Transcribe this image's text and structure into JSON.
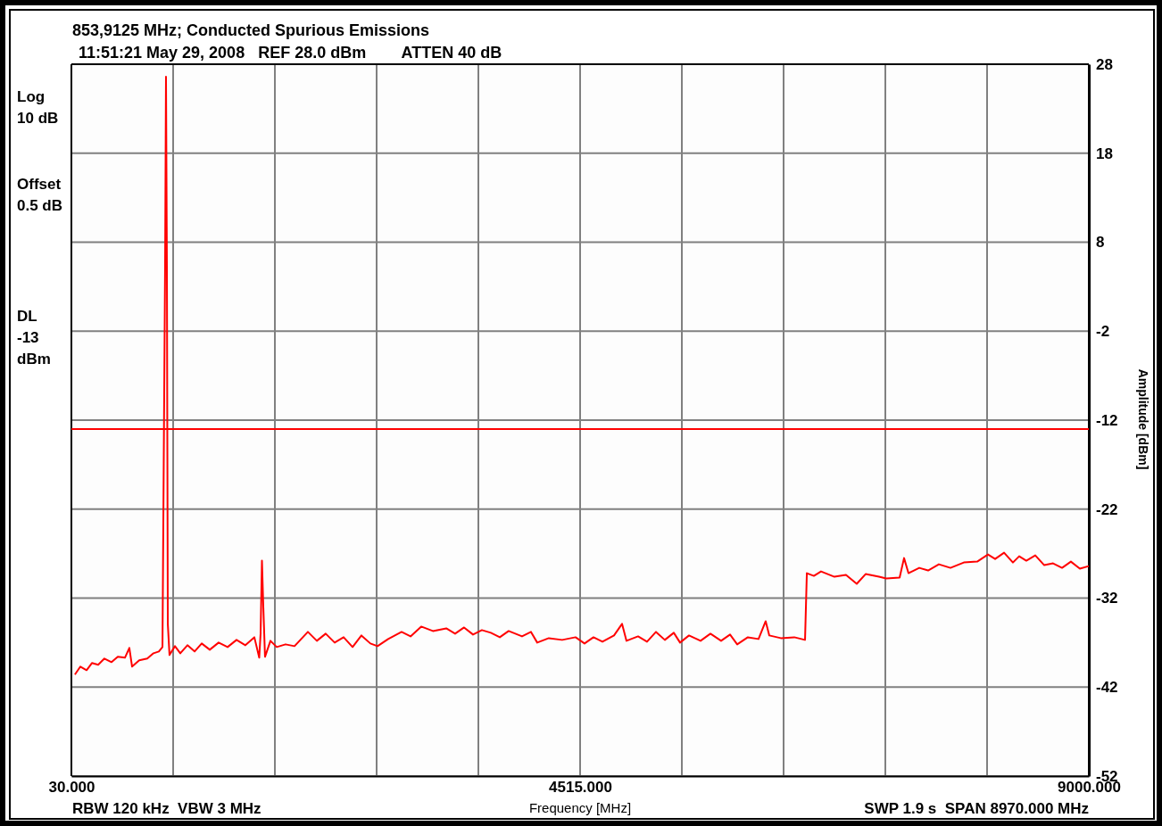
{
  "chart_data": {
    "type": "line",
    "title": "853,9125 MHz; Conducted Spurious Emissions",
    "subtitle": "11:51:21 May 29, 2008   REF 28.0 dBm        ATTEN 40 dB",
    "xlabel": "Frequency [MHz]",
    "ylabel": "Amplitude [dBm]",
    "annotations": [
      "Log\n10 dB",
      "Offset\n0.5 dB",
      "DL\n-13\ndBm",
      "RBW 120 kHz  VBW 3 MHz",
      "SWP 1.9 s  SPAN 8970.000 MHz"
    ],
    "xlim": [
      30,
      9000
    ],
    "xticks": [
      {
        "value": 30,
        "label": "30.000"
      },
      {
        "value": 927,
        "label": null
      },
      {
        "value": 1824,
        "label": null
      },
      {
        "value": 2721,
        "label": null
      },
      {
        "value": 3618,
        "label": null
      },
      {
        "value": 4515,
        "label": "4515.000"
      },
      {
        "value": 5412,
        "label": null
      },
      {
        "value": 6309,
        "label": null
      },
      {
        "value": 7206,
        "label": null
      },
      {
        "value": 8103,
        "label": null
      },
      {
        "value": 9000,
        "label": "9000.000"
      }
    ],
    "ylim": [
      -52,
      28
    ],
    "yticks": [
      28,
      18,
      8,
      -2,
      -12,
      -22,
      -32,
      -42,
      -52
    ],
    "grid": true,
    "line_style": "solid",
    "marker": "none",
    "ref_lines": [
      {
        "axis": "y",
        "value": -13,
        "color": "#ff0000"
      }
    ],
    "series": [
      {
        "color": "#ff0000",
        "x": [
          61,
          109,
          164,
          211,
          266,
          321,
          384,
          439,
          502,
          541,
          565,
          628,
          699,
          754,
          801,
          833,
          844,
          856,
          864,
          872,
          880,
          895,
          943,
          990,
          1053,
          1116,
          1179,
          1250,
          1328,
          1407,
          1486,
          1564,
          1643,
          1686,
          1698,
          1710,
          1722,
          1737,
          1785,
          1840,
          1918,
          1997,
          2115,
          2194,
          2272,
          2351,
          2430,
          2509,
          2587,
          2666,
          2729,
          2823,
          2941,
          3020,
          3114,
          3217,
          3335,
          3413,
          3492,
          3571,
          3649,
          3728,
          3807,
          3885,
          4003,
          4082,
          4137,
          4239,
          4357,
          4475,
          4554,
          4633,
          4712,
          4814,
          4885,
          4924,
          5026,
          5105,
          5184,
          5262,
          5341,
          5396,
          5475,
          5577,
          5664,
          5758,
          5837,
          5900,
          5994,
          6088,
          6151,
          6183,
          6285,
          6403,
          6498,
          6514,
          6576,
          6639,
          6757,
          6859,
          6954,
          7032,
          7150,
          7214,
          7332,
          7371,
          7410,
          7505,
          7583,
          7678,
          7780,
          7898,
          8016,
          8111,
          8174,
          8253,
          8331,
          8386,
          8449,
          8528,
          8607,
          8685,
          8764,
          8842,
          8921,
          9000
        ],
        "values": [
          -40.6,
          -39.7,
          -40.1,
          -39.3,
          -39.5,
          -38.8,
          -39.2,
          -38.6,
          -38.7,
          -37.6,
          -39.7,
          -39.0,
          -38.8,
          -38.2,
          -38.0,
          -37.5,
          -16.9,
          5.2,
          26.6,
          5.2,
          -34.9,
          -38.4,
          -37.4,
          -38.2,
          -37.3,
          -38.0,
          -37.1,
          -37.8,
          -37.0,
          -37.5,
          -36.7,
          -37.3,
          -36.4,
          -38.7,
          -36.0,
          -27.8,
          -33.0,
          -38.6,
          -36.8,
          -37.5,
          -37.2,
          -37.4,
          -35.8,
          -36.8,
          -36.0,
          -37.0,
          -36.4,
          -37.5,
          -36.2,
          -37.1,
          -37.4,
          -36.6,
          -35.8,
          -36.3,
          -35.2,
          -35.7,
          -35.4,
          -36.0,
          -35.3,
          -36.1,
          -35.6,
          -35.9,
          -36.4,
          -35.7,
          -36.3,
          -35.8,
          -37.0,
          -36.5,
          -36.7,
          -36.4,
          -37.1,
          -36.4,
          -36.9,
          -36.2,
          -34.9,
          -36.8,
          -36.3,
          -36.9,
          -35.8,
          -36.7,
          -35.9,
          -37.0,
          -36.2,
          -36.8,
          -36.0,
          -36.8,
          -36.1,
          -37.2,
          -36.4,
          -36.6,
          -34.6,
          -36.2,
          -36.5,
          -36.4,
          -36.7,
          -29.2,
          -29.5,
          -29.0,
          -29.6,
          -29.4,
          -30.4,
          -29.3,
          -29.6,
          -29.8,
          -29.7,
          -27.5,
          -29.2,
          -28.6,
          -28.9,
          -28.2,
          -28.6,
          -28.0,
          -27.9,
          -27.1,
          -27.6,
          -26.9,
          -28.0,
          -27.3,
          -27.8,
          -27.2,
          -28.3,
          -28.1,
          -28.6,
          -27.9,
          -28.7,
          -28.4
        ]
      }
    ]
  }
}
